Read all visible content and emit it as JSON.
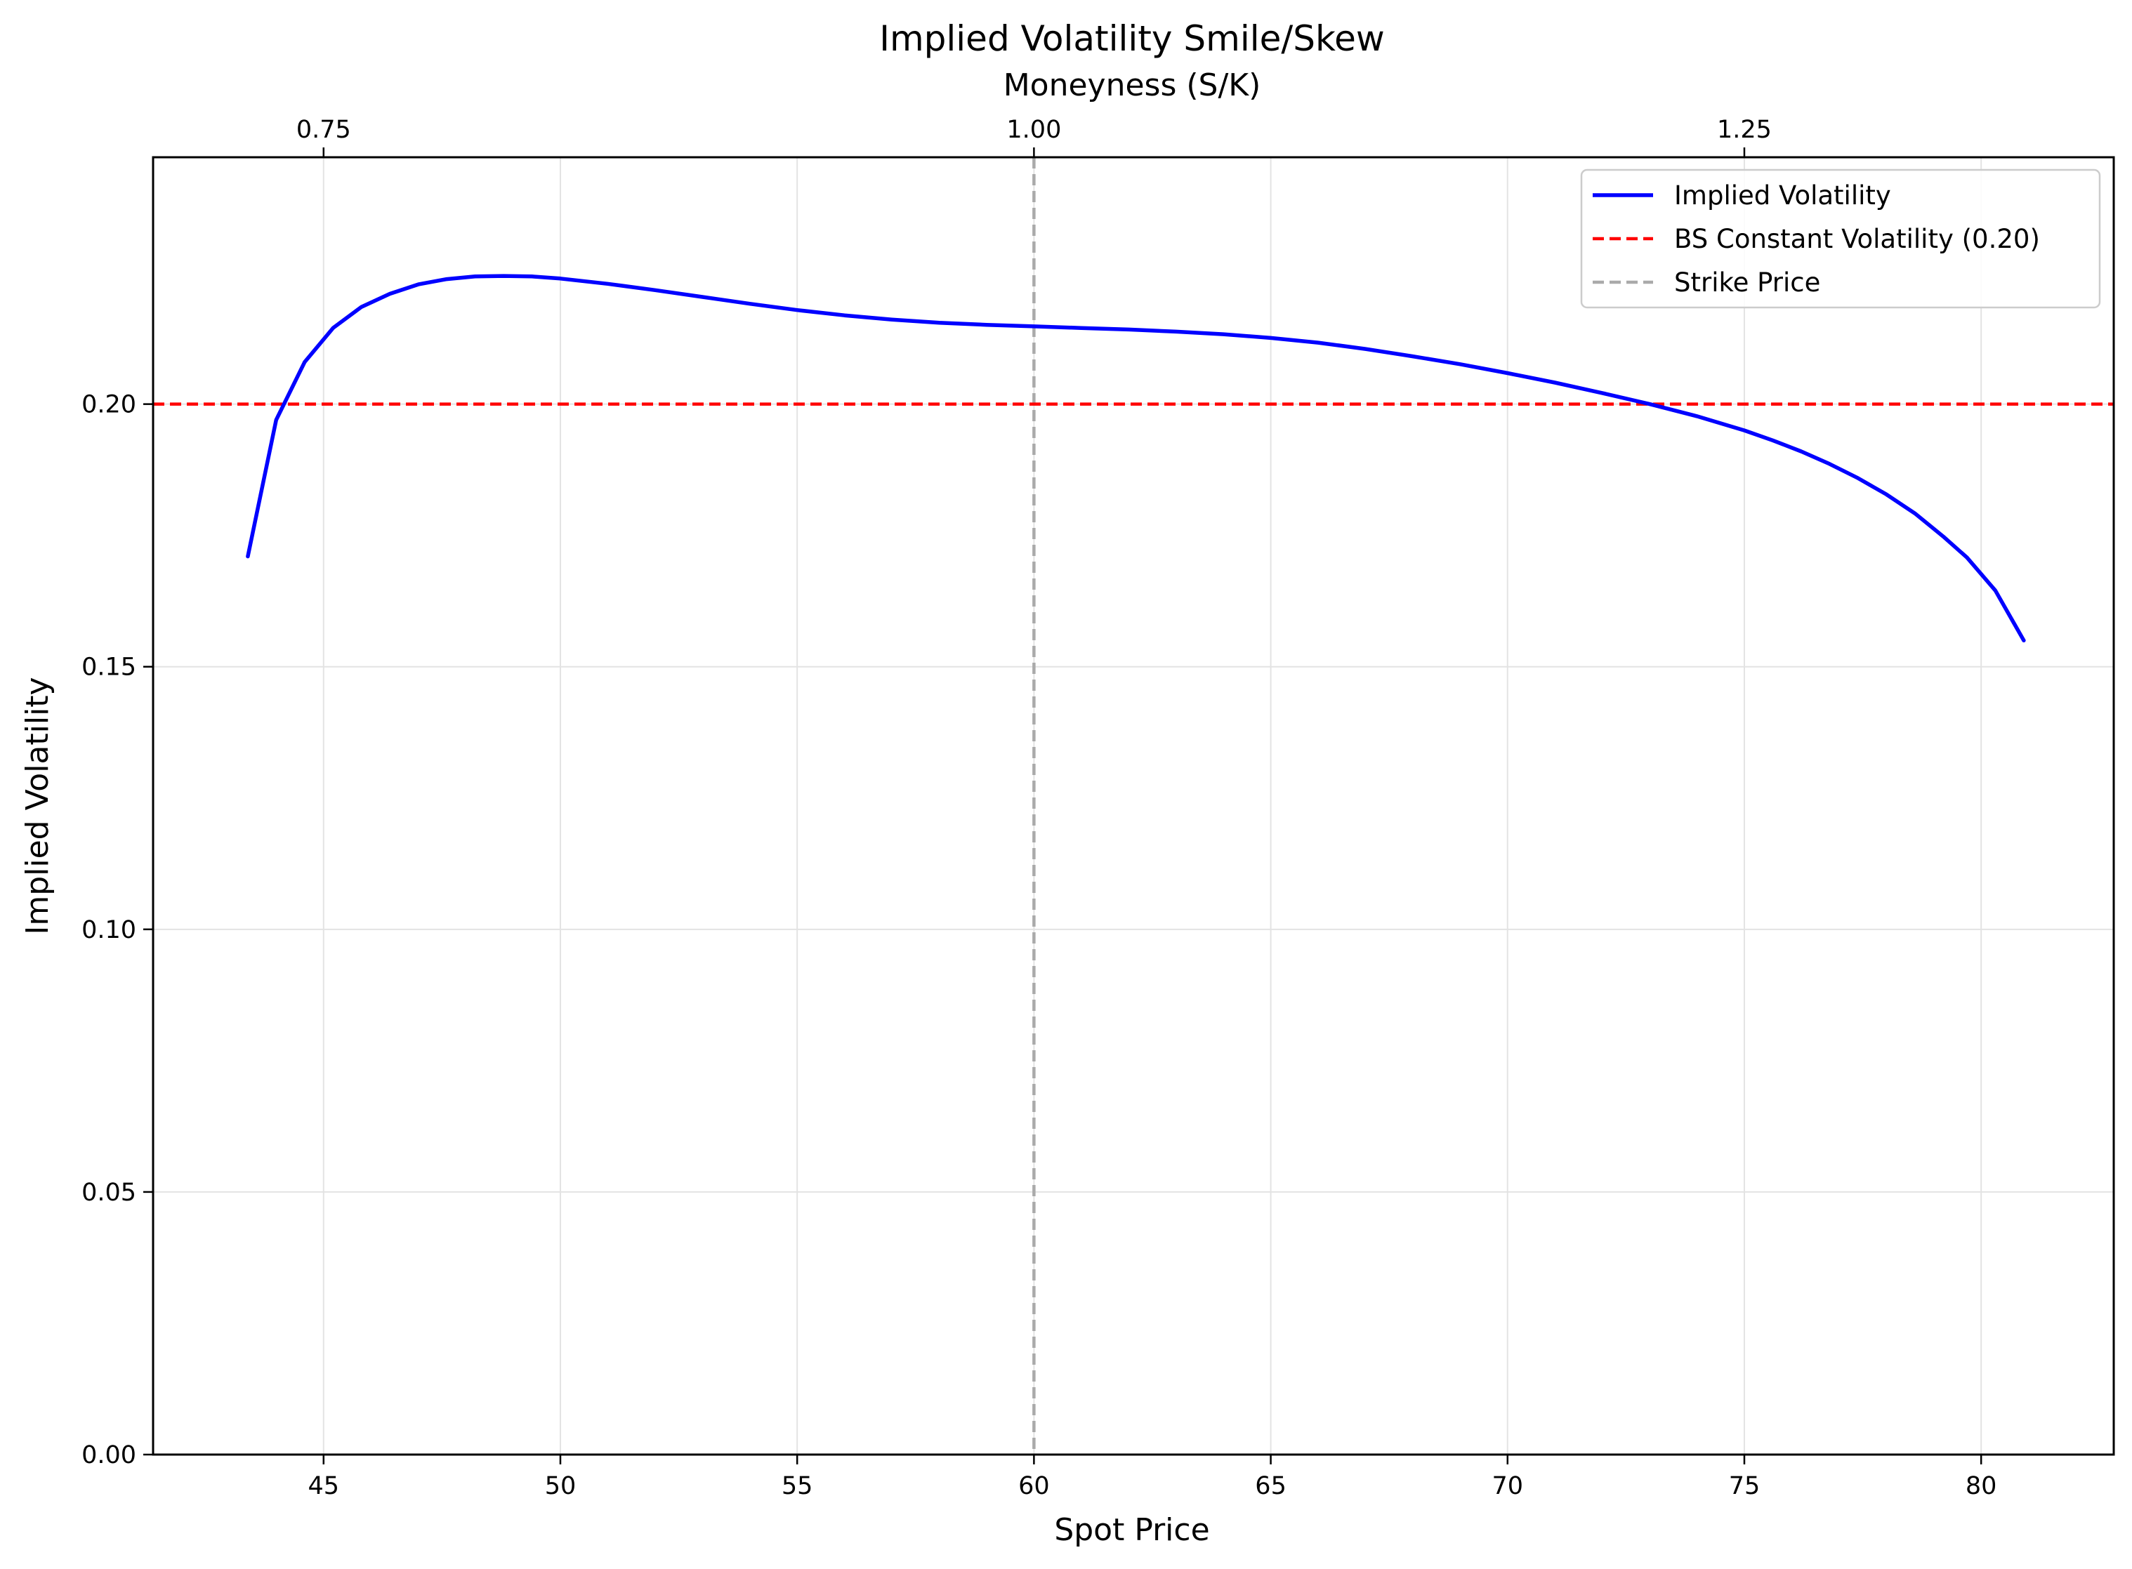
{
  "chart_data": {
    "type": "line",
    "title": "Implied Volatility Smile/Skew",
    "xlabel": "Spot Price",
    "ylabel": "Implied Volatility",
    "secondary_xlabel": "Moneyness (S/K)",
    "xlim": [
      41.4,
      82.8
    ],
    "ylim": [
      0,
      0.247
    ],
    "x_ticks": [
      45,
      50,
      55,
      60,
      65,
      70,
      75,
      80
    ],
    "y_ticks": [
      "0.00",
      "0.05",
      "0.10",
      "0.15",
      "0.20"
    ],
    "top_ticks": [
      {
        "label": "0.75",
        "spot": 45
      },
      {
        "label": "1.00",
        "spot": 60
      },
      {
        "label": "1.25",
        "spot": 75
      }
    ],
    "grid": true,
    "legend_position": "top-right",
    "series": [
      {
        "name": "Implied Volatility",
        "color": "#0000ff",
        "style": "solid",
        "x": [
          43.4,
          44.0,
          44.6,
          45.2,
          45.8,
          46.4,
          47.0,
          47.6,
          48.2,
          48.8,
          49.4,
          50.0,
          51.0,
          52.0,
          53.0,
          54.0,
          55.0,
          56.0,
          57.0,
          58.0,
          59.0,
          60.0,
          61.0,
          62.0,
          63.0,
          64.0,
          65.0,
          66.0,
          67.0,
          68.0,
          69.0,
          70.0,
          71.0,
          72.0,
          73.0,
          74.0,
          75.0,
          75.6,
          76.2,
          76.8,
          77.4,
          78.0,
          78.6,
          79.2,
          79.7,
          80.3,
          80.9
        ],
        "y": [
          0.171,
          0.197,
          0.208,
          0.2145,
          0.2185,
          0.221,
          0.2228,
          0.2238,
          0.2243,
          0.2244,
          0.2243,
          0.2239,
          0.2229,
          0.2217,
          0.2204,
          0.2191,
          0.2179,
          0.2169,
          0.2161,
          0.2155,
          0.2151,
          0.2148,
          0.2145,
          0.2142,
          0.2138,
          0.2133,
          0.2126,
          0.2117,
          0.2105,
          0.2091,
          0.2076,
          0.2059,
          0.2041,
          0.2021,
          0.2,
          0.1977,
          0.195,
          0.1931,
          0.191,
          0.1886,
          0.1859,
          0.1828,
          0.1792,
          0.1748,
          0.1708,
          0.1645,
          0.155
        ]
      },
      {
        "name": "BS Constant Volatility (0.20)",
        "color": "#ff0000",
        "style": "dashed",
        "y_constant": 0.2
      },
      {
        "name": "Strike Price",
        "color": "#aaaaaa",
        "style": "dashed",
        "x_constant": 60
      }
    ]
  }
}
